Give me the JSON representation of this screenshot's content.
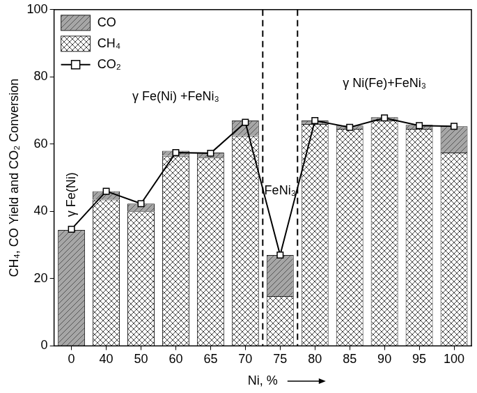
{
  "chart_data": {
    "type": "bar",
    "stacked": true,
    "x_label": "Ni, %",
    "y_label": "CH₄, CO Yield and CO₂ Conversion",
    "categories": [
      "0",
      "40",
      "50",
      "60",
      "65",
      "70",
      "75",
      "80",
      "85",
      "90",
      "95",
      "100"
    ],
    "series": [
      {
        "name": "CO",
        "type": "bar",
        "color": "#a6a6a6",
        "values": [
          34.5,
          2.5,
          2.3,
          1.5,
          1.5,
          4.5,
          12.2,
          1.0,
          1.0,
          1.0,
          1.2,
          7.8
        ]
      },
      {
        "name": "CH₄",
        "type": "bar",
        "color": "#ffffff",
        "values": [
          0,
          43.5,
          40.0,
          56.5,
          56.0,
          62.5,
          14.8,
          66.0,
          64.5,
          67.0,
          64.5,
          57.5
        ]
      },
      {
        "name": "CO₂",
        "type": "line",
        "color": "#000000",
        "marker": "square",
        "values": [
          34.7,
          46.0,
          42.3,
          57.5,
          57.3,
          66.5,
          27.0,
          67.0,
          65.0,
          67.8,
          65.5,
          65.3
        ]
      }
    ],
    "ylim": [
      0,
      100
    ],
    "yticks": [
      0,
      20,
      40,
      60,
      80,
      100
    ],
    "grid": false,
    "legend": "upper left",
    "annotations": [
      {
        "text": "γ Fe(Ni)",
        "x": "0",
        "y": 45
      },
      {
        "text": "γ Fe(Ni) +FeNi₃",
        "x": "60",
        "y": 74
      },
      {
        "text": "FeNi₃",
        "x": "75",
        "y": 46
      },
      {
        "text": "γ Ni(Fe)+FeNi₃",
        "x": "90",
        "y": 78
      }
    ],
    "dividers": [
      [
        "70",
        "75"
      ],
      [
        "75",
        "80"
      ]
    ]
  }
}
